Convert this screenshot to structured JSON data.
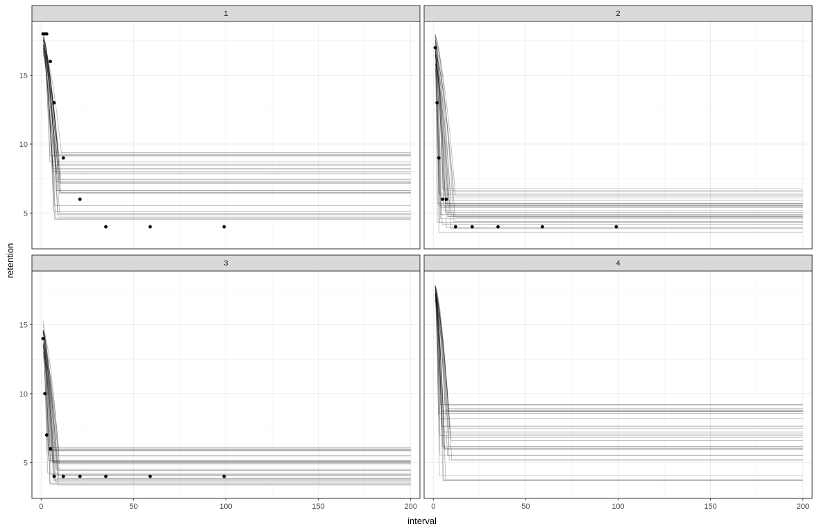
{
  "chart_data": {
    "type": "line",
    "layout": "facet_wrap 2x2",
    "xlabel": "interval",
    "ylabel": "retention",
    "xlim": [
      -5,
      205
    ],
    "x_ticks": [
      0,
      50,
      100,
      150,
      200
    ],
    "x_tick_labels": [
      "0",
      "50",
      "100",
      "150",
      "200"
    ],
    "y_ticks": [
      5,
      10,
      15
    ],
    "y_tick_labels": [
      "5",
      "10",
      "15"
    ],
    "row_ylims": [
      [
        2.4,
        18.9
      ],
      [
        2.4,
        18.9
      ]
    ],
    "grid": true,
    "legend": "none",
    "line_color": "#000000",
    "point_color": "#000000",
    "strip_fill": "#d9d9d9",
    "panels": [
      {
        "label": "1",
        "points": {
          "x": [
            1,
            2,
            3,
            5,
            7,
            12,
            21,
            35,
            59,
            99
          ],
          "y": [
            18,
            18,
            18,
            16,
            13,
            9,
            6,
            4,
            4,
            4
          ]
        },
        "fitted_lines": {
          "count": 30,
          "start_range": [
            16.5,
            18.1
          ],
          "decay_end_range": [
            4,
            11
          ],
          "asymptote_range": [
            4.5,
            9.6
          ],
          "x_max": 200
        }
      },
      {
        "label": "2",
        "points": {
          "x": [
            1,
            2,
            3,
            5,
            7,
            12,
            21,
            35,
            59,
            99
          ],
          "y": [
            17,
            13,
            9,
            6,
            6,
            4,
            4,
            4,
            4,
            4
          ]
        },
        "fitted_lines": {
          "count": 30,
          "start_range": [
            15.5,
            18.2
          ],
          "decay_end_range": [
            2,
            12
          ],
          "asymptote_range": [
            3.6,
            6.8
          ],
          "x_max": 200
        }
      },
      {
        "label": "3",
        "points": {
          "x": [
            1,
            2,
            3,
            5,
            7,
            12,
            21,
            35,
            59,
            99
          ],
          "y": [
            14,
            10,
            7,
            6,
            4,
            4,
            4,
            4,
            4,
            4
          ]
        },
        "fitted_lines": {
          "count": 30,
          "start_range": [
            12.5,
            15.3
          ],
          "decay_end_range": [
            3,
            10
          ],
          "asymptote_range": [
            3.2,
            6.4
          ],
          "x_max": 200
        }
      },
      {
        "label": "4",
        "points": {
          "x": [],
          "y": []
        },
        "fitted_lines": {
          "count": 30,
          "start_range": [
            16.8,
            18.0
          ],
          "decay_end_range": [
            2,
            10
          ],
          "asymptote_range": [
            3.4,
            9.6
          ],
          "x_max": 200
        }
      }
    ]
  }
}
